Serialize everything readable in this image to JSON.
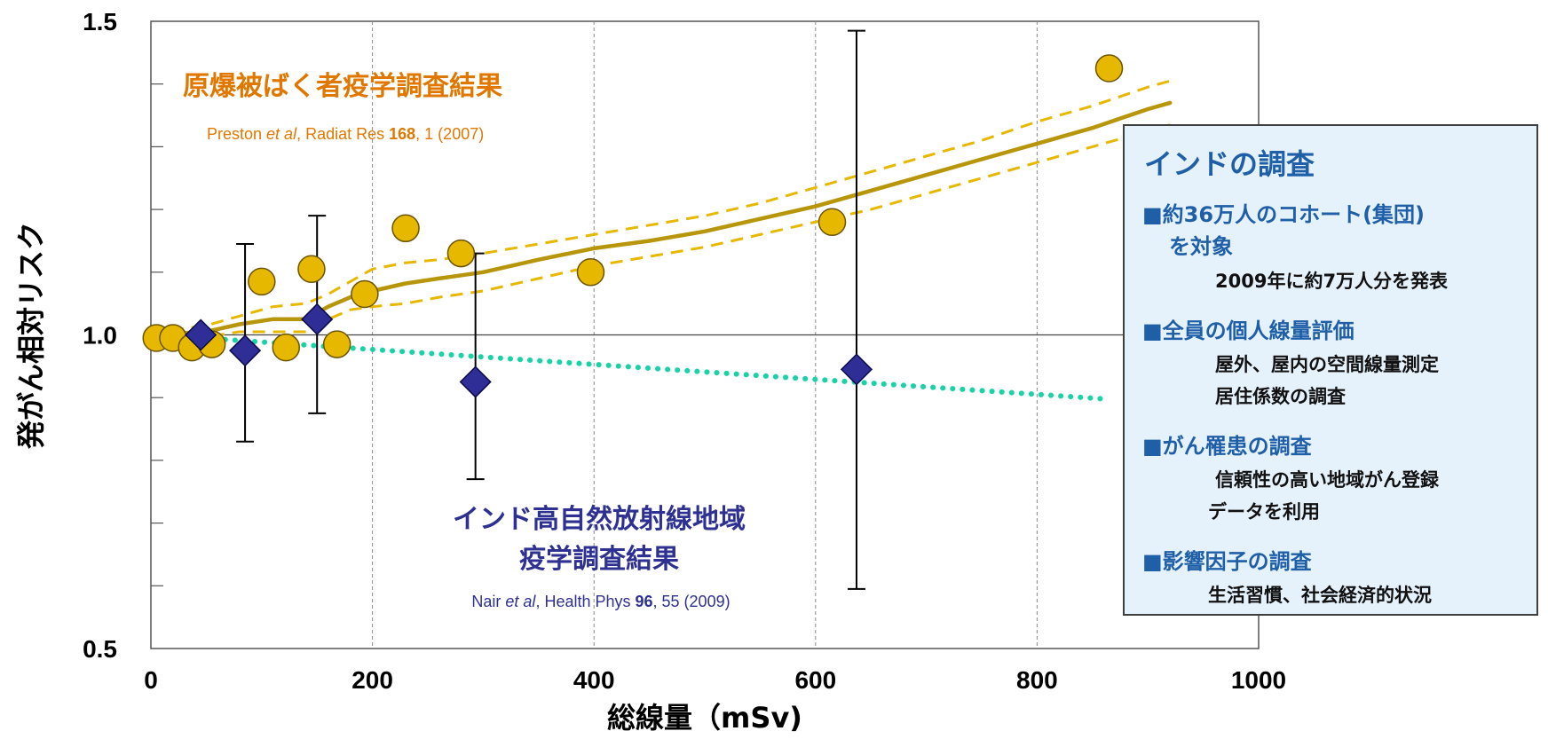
{
  "chart_data": {
    "type": "scatter",
    "xlabel": "総線量（mSv)",
    "ylabel": "発がん相対リスク",
    "xlim": [
      0,
      1000
    ],
    "ylim": [
      0.5,
      1.5
    ],
    "xticks": [
      "0",
      "200",
      "400",
      "600",
      "800",
      "1000"
    ],
    "yticks": [
      "0.5",
      "1.0",
      "1.5"
    ],
    "grid": "vertical dashed at 200,400,600,800; horizontal line at 1.0",
    "series": [
      {
        "marker": "circle",
        "color": "#e6b800",
        "points": [
          [
            5,
            0.995
          ],
          [
            20,
            0.995
          ],
          [
            37,
            0.98
          ],
          [
            55,
            0.985
          ],
          [
            100,
            1.085
          ],
          [
            122,
            0.98
          ],
          [
            145,
            1.105
          ],
          [
            168,
            0.985
          ],
          [
            193,
            1.065
          ],
          [
            230,
            1.17
          ],
          [
            280,
            1.13
          ],
          [
            397,
            1.1
          ],
          [
            615,
            1.18
          ],
          [
            865,
            1.425
          ]
        ]
      },
      {
        "marker": "diamond",
        "color": "#2e2e96",
        "points": [
          {
            "x": 45,
            "y": 1.0
          },
          {
            "x": 85,
            "y": 0.975,
            "err_low": 0.83,
            "err_high": 1.145
          },
          {
            "x": 150,
            "y": 1.025,
            "err_low": 0.875,
            "err_high": 1.19
          },
          {
            "x": 293,
            "y": 0.925,
            "err_low": 0.77,
            "err_high": 1.13
          },
          {
            "x": 637,
            "y": 0.945,
            "err_low": 0.595,
            "err_high": 1.485
          }
        ]
      }
    ],
    "fit_lines": [
      {
        "style": "solid",
        "color": "#b8960c",
        "points": [
          [
            0,
            1.0
          ],
          [
            50,
            1.005
          ],
          [
            80,
            1.017
          ],
          [
            110,
            1.025
          ],
          [
            140,
            1.025
          ],
          [
            160,
            1.045
          ],
          [
            180,
            1.06
          ],
          [
            200,
            1.07
          ],
          [
            230,
            1.082
          ],
          [
            260,
            1.09
          ],
          [
            300,
            1.1
          ],
          [
            350,
            1.12
          ],
          [
            400,
            1.138
          ],
          [
            450,
            1.15
          ],
          [
            500,
            1.165
          ],
          [
            550,
            1.185
          ],
          [
            600,
            1.205
          ],
          [
            650,
            1.23
          ],
          [
            700,
            1.255
          ],
          [
            750,
            1.28
          ],
          [
            800,
            1.305
          ],
          [
            850,
            1.33
          ],
          [
            900,
            1.36
          ],
          [
            920,
            1.37
          ]
        ]
      },
      {
        "style": "dashed",
        "color": "#e6b800",
        "points": [
          [
            0,
            1.003
          ],
          [
            50,
            1.015
          ],
          [
            80,
            1.03
          ],
          [
            110,
            1.045
          ],
          [
            140,
            1.05
          ],
          [
            160,
            1.065
          ],
          [
            180,
            1.085
          ],
          [
            200,
            1.105
          ],
          [
            230,
            1.115
          ],
          [
            260,
            1.12
          ],
          [
            300,
            1.13
          ],
          [
            350,
            1.145
          ],
          [
            400,
            1.16
          ],
          [
            450,
            1.175
          ],
          [
            500,
            1.19
          ],
          [
            550,
            1.21
          ],
          [
            600,
            1.235
          ],
          [
            650,
            1.26
          ],
          [
            700,
            1.285
          ],
          [
            750,
            1.31
          ],
          [
            800,
            1.34
          ],
          [
            850,
            1.365
          ],
          [
            900,
            1.395
          ],
          [
            920,
            1.405
          ]
        ]
      },
      {
        "style": "dashed",
        "color": "#e6b800",
        "points": [
          [
            0,
            0.997
          ],
          [
            50,
            0.997
          ],
          [
            80,
            1.005
          ],
          [
            110,
            1.005
          ],
          [
            140,
            1.005
          ],
          [
            160,
            1.025
          ],
          [
            180,
            1.04
          ],
          [
            200,
            1.045
          ],
          [
            230,
            1.05
          ],
          [
            260,
            1.06
          ],
          [
            300,
            1.07
          ],
          [
            350,
            1.09
          ],
          [
            400,
            1.11
          ],
          [
            450,
            1.125
          ],
          [
            500,
            1.14
          ],
          [
            550,
            1.16
          ],
          [
            600,
            1.18
          ],
          [
            650,
            1.2
          ],
          [
            700,
            1.225
          ],
          [
            750,
            1.25
          ],
          [
            800,
            1.275
          ],
          [
            850,
            1.3
          ],
          [
            900,
            1.325
          ],
          [
            920,
            1.335
          ]
        ]
      },
      {
        "style": "dotted",
        "color": "#19d3a6",
        "points": [
          [
            5,
            1.0
          ],
          [
            860,
            0.898
          ]
        ]
      }
    ]
  },
  "annotations": {
    "atomic_title": "原爆被ばく者疫学調査結果",
    "atomic_cite": {
      "a": "Preston ",
      "b": "et al",
      "c": ", Radiat Res ",
      "d": "168",
      "e": ", 1 (2007)"
    },
    "india_title_1": "インド高自然放射線地域",
    "india_title_2": "疫学調査結果",
    "india_cite": {
      "a": "Nair ",
      "b": "et al",
      "c": ", Health Phys ",
      "d": "96",
      "e": ", 55 (2009)"
    }
  },
  "info_box": {
    "title": "インドの調査",
    "h1a": "■約36万人のコホート(集団)",
    "h1b": "を対象",
    "d1": "2009年に約7万人分を発表",
    "h2": "■全員の個人線量評価",
    "d2a": "屋外、屋内の空間線量測定",
    "d2b": "居住係数の調査",
    "h3": "■がん罹患の調査",
    "d3a": "信頼性の高い地域がん登録",
    "d3b": "データを利用",
    "h4": "■影響因子の調査",
    "d4": "生活習慣、社会経済的状況"
  },
  "colors": {
    "atomic": "#e07800",
    "india": "#2e3192",
    "box_text": "#1f5fa8",
    "box_bg": "#e5f1fb"
  }
}
